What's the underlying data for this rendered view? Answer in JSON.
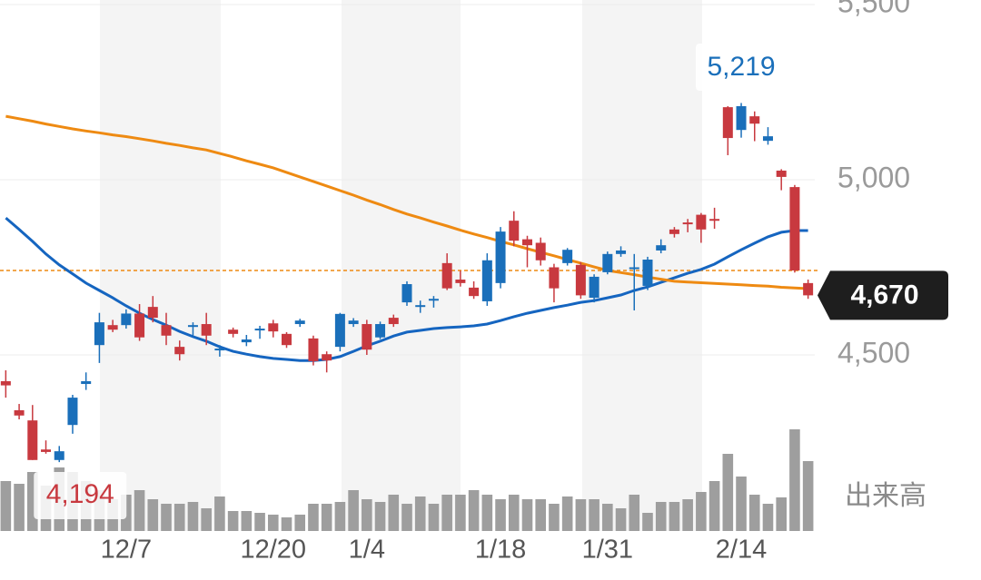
{
  "chart_data": {
    "type": "candlestick",
    "categories": [
      null,
      null,
      null,
      null,
      null,
      null,
      null,
      null,
      null,
      "12/7",
      null,
      null,
      null,
      null,
      null,
      null,
      null,
      null,
      null,
      null,
      "12/20",
      null,
      null,
      null,
      null,
      null,
      null,
      "1/4",
      null,
      null,
      null,
      null,
      null,
      null,
      null,
      null,
      null,
      "1/18",
      null,
      null,
      null,
      null,
      null,
      null,
      null,
      "1/31",
      null,
      null,
      null,
      null,
      null,
      null,
      null,
      null,
      null,
      "2/14",
      null,
      null,
      null,
      null,
      null
    ],
    "open": [
      4425,
      4342,
      4313,
      4230,
      4200,
      4300,
      4417,
      4528,
      4585,
      4585,
      4618,
      4637,
      4585,
      4523,
      4580,
      4588,
      4513,
      4572,
      4536,
      4572,
      4590,
      4560,
      4588,
      4547,
      4502,
      4523,
      4588,
      4588,
      4550,
      4606,
      4650,
      4637,
      4655,
      4762,
      4715,
      4692,
      4653,
      4705,
      4883,
      4830,
      4820,
      4750,
      4762,
      4757,
      4663,
      4736,
      4788,
      4748,
      4697,
      4798,
      4858,
      4878,
      4900,
      4888,
      5207,
      5142,
      5181,
      5111,
      5026,
      4979,
      4705
    ],
    "high": [
      4456,
      4360,
      4357,
      4256,
      4240,
      4386,
      4450,
      4620,
      4600,
      4630,
      4645,
      4668,
      4620,
      4541,
      4593,
      4620,
      4528,
      4578,
      4557,
      4583,
      4600,
      4565,
      4603,
      4555,
      4510,
      4620,
      4605,
      4600,
      4595,
      4615,
      4710,
      4655,
      4668,
      4790,
      4740,
      4710,
      4790,
      4865,
      4910,
      4840,
      4835,
      4760,
      4805,
      4765,
      4730,
      4795,
      4810,
      4788,
      4780,
      4830,
      4865,
      4888,
      4905,
      4920,
      5210,
      5219,
      5195,
      5150,
      5030,
      4985,
      4715
    ],
    "low": [
      4378,
      4316,
      4200,
      4218,
      4194,
      4275,
      4400,
      4477,
      4565,
      4575,
      4540,
      4593,
      4528,
      4484,
      4555,
      4528,
      4495,
      4550,
      4525,
      4546,
      4550,
      4520,
      4580,
      4470,
      4450,
      4510,
      4580,
      4500,
      4545,
      4580,
      4640,
      4620,
      4635,
      4685,
      4695,
      4660,
      4640,
      4690,
      4810,
      4750,
      4755,
      4650,
      4755,
      4660,
      4650,
      4730,
      4780,
      4627,
      4685,
      4790,
      4835,
      4850,
      4820,
      4860,
      5070,
      5120,
      5110,
      5100,
      4970,
      4735,
      4660
    ],
    "close": [
      4413,
      4327,
      4200,
      4223,
      4225,
      4378,
      4425,
      4593,
      4572,
      4618,
      4550,
      4606,
      4555,
      4502,
      4585,
      4555,
      4518,
      4560,
      4544,
      4575,
      4567,
      4528,
      4598,
      4482,
      4484,
      4617,
      4598,
      4515,
      4588,
      4588,
      4702,
      4642,
      4660,
      4690,
      4705,
      4668,
      4770,
      4852,
      4826,
      4813,
      4770,
      4690,
      4800,
      4670,
      4723,
      4788,
      4798,
      4750,
      4772,
      4813,
      4845,
      4873,
      4858,
      4883,
      5119,
      5210,
      5160,
      5124,
      5008,
      4741,
      4670
    ],
    "up_color": "#1a6fba",
    "down_color": "#c8393f",
    "lines": [
      {
        "color": "#1565c0",
        "values": [
          4891,
          4858,
          4824,
          4788,
          4757,
          4731,
          4705,
          4684,
          4663,
          4640,
          4619,
          4601,
          4585,
          4567,
          4552,
          4539,
          4523,
          4510,
          4502,
          4495,
          4490,
          4487,
          4484,
          4484,
          4487,
          4495,
          4510,
          4526,
          4539,
          4554,
          4565,
          4570,
          4575,
          4578,
          4580,
          4583,
          4588,
          4598,
          4609,
          4619,
          4627,
          4635,
          4642,
          4650,
          4655,
          4663,
          4671,
          4684,
          4694,
          4707,
          4720,
          4733,
          4744,
          4759,
          4780,
          4800,
          4819,
          4837,
          4850,
          4855,
          4855
        ]
      },
      {
        "color": "#ee8a12",
        "values": [
          5181,
          5174,
          5167,
          5159,
          5152,
          5145,
          5139,
          5134,
          5128,
          5123,
          5117,
          5111,
          5104,
          5098,
          5091,
          5085,
          5075,
          5065,
          5054,
          5044,
          5034,
          5021,
          5008,
          4995,
          4982,
          4969,
          4956,
          4942,
          4929,
          4915,
          4902,
          4891,
          4879,
          4868,
          4856,
          4845,
          4835,
          4824,
          4814,
          4803,
          4793,
          4783,
          4772,
          4762,
          4751,
          4741,
          4735,
          4729,
          4722,
          4716,
          4710,
          4708,
          4706,
          4704,
          4702,
          4700,
          4698,
          4696,
          4693,
          4691,
          4689
        ]
      }
    ],
    "reference_line": {
      "value": 4741,
      "color": "#ee8a12"
    },
    "volume": {
      "color": "#9e9e9e",
      "values": [
        55,
        52,
        65,
        50,
        70,
        65,
        55,
        45,
        35,
        40,
        45,
        35,
        30,
        30,
        32,
        25,
        38,
        22,
        22,
        20,
        18,
        15,
        18,
        30,
        30,
        32,
        45,
        35,
        32,
        40,
        30,
        38,
        30,
        40,
        40,
        45,
        40,
        35,
        40,
        35,
        35,
        30,
        38,
        35,
        35,
        30,
        25,
        40,
        20,
        32,
        32,
        35,
        43,
        55,
        85,
        60,
        40,
        30,
        37,
        112,
        77
      ]
    },
    "volume_label": "出来高",
    "ylim": [
      4000,
      5500
    ],
    "yticks": [
      {
        "value": 5500,
        "label": "5,500"
      },
      {
        "value": 5000,
        "label": "5,000"
      },
      {
        "value": 4500,
        "label": "4,500"
      }
    ],
    "grid": true,
    "high_label": {
      "value": 5219,
      "label": "5,219"
    },
    "low_label": {
      "value": 4194,
      "label": "4,194"
    },
    "last_label": {
      "value": 4670,
      "label": "4,670"
    }
  }
}
